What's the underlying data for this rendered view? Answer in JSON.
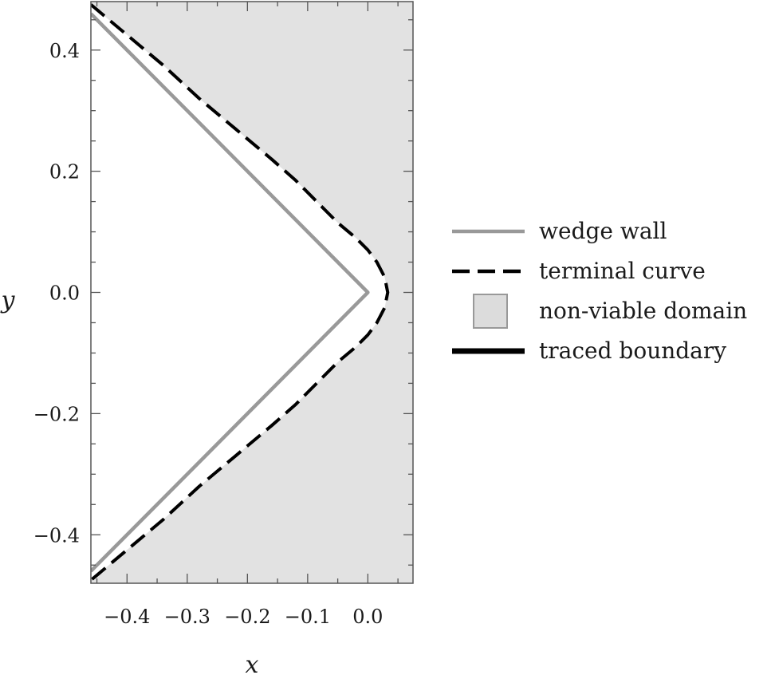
{
  "chart_data": {
    "type": "line",
    "title": "",
    "xlabel": "x",
    "ylabel": "y",
    "xlim": [
      -0.46,
      0.075
    ],
    "ylim": [
      -0.48,
      0.48
    ],
    "x_ticks": [
      -0.4,
      -0.3,
      -0.2,
      -0.1,
      0.0
    ],
    "x_tick_labels": [
      "−0.4",
      "−0.3",
      "−0.2",
      "−0.1",
      "0.0"
    ],
    "y_ticks": [
      0.4,
      0.2,
      0.0,
      -0.2,
      -0.4
    ],
    "y_tick_labels": [
      "0.4",
      "0.2",
      "0.0",
      "−0.2",
      "−0.4"
    ],
    "grid": false,
    "legend_position": "right",
    "background_region": {
      "name": "non-viable domain",
      "color": "#e2e2e2"
    },
    "series": [
      {
        "name": "wedge wall",
        "style": "solid",
        "color": "#999999",
        "x": [
          -0.46,
          0.0,
          -0.46
        ],
        "y": [
          0.46,
          0.0,
          -0.46
        ]
      },
      {
        "name": "terminal curve",
        "style": "dashed",
        "color": "#000000",
        "x": [
          -0.46,
          -0.4,
          -0.34,
          -0.28,
          -0.22,
          -0.16,
          -0.12,
          -0.08,
          -0.05,
          -0.02,
          0.0,
          0.015,
          0.028,
          0.033,
          0.028,
          0.015,
          0.0,
          -0.02,
          -0.05,
          -0.08,
          -0.12,
          -0.16,
          -0.22,
          -0.28,
          -0.34,
          -0.4,
          -0.46
        ],
        "y": [
          0.475,
          0.425,
          0.375,
          0.32,
          0.27,
          0.22,
          0.185,
          0.145,
          0.115,
          0.09,
          0.07,
          0.05,
          0.025,
          0.0,
          -0.025,
          -0.05,
          -0.07,
          -0.09,
          -0.115,
          -0.145,
          -0.185,
          -0.22,
          -0.27,
          -0.32,
          -0.375,
          -0.425,
          -0.475
        ]
      },
      {
        "name": "traced boundary",
        "style": "solid",
        "color": "#000000",
        "x": [],
        "y": []
      }
    ],
    "legend": [
      {
        "label": "wedge wall",
        "kind": "line",
        "color": "#999999",
        "dash": ""
      },
      {
        "label": "terminal curve",
        "kind": "line",
        "color": "#000000",
        "dash": "22 10"
      },
      {
        "label": "non-viable domain",
        "kind": "patch",
        "color": "#dcdcdc"
      },
      {
        "label": "traced boundary",
        "kind": "line",
        "color": "#000000",
        "dash": ""
      }
    ]
  }
}
